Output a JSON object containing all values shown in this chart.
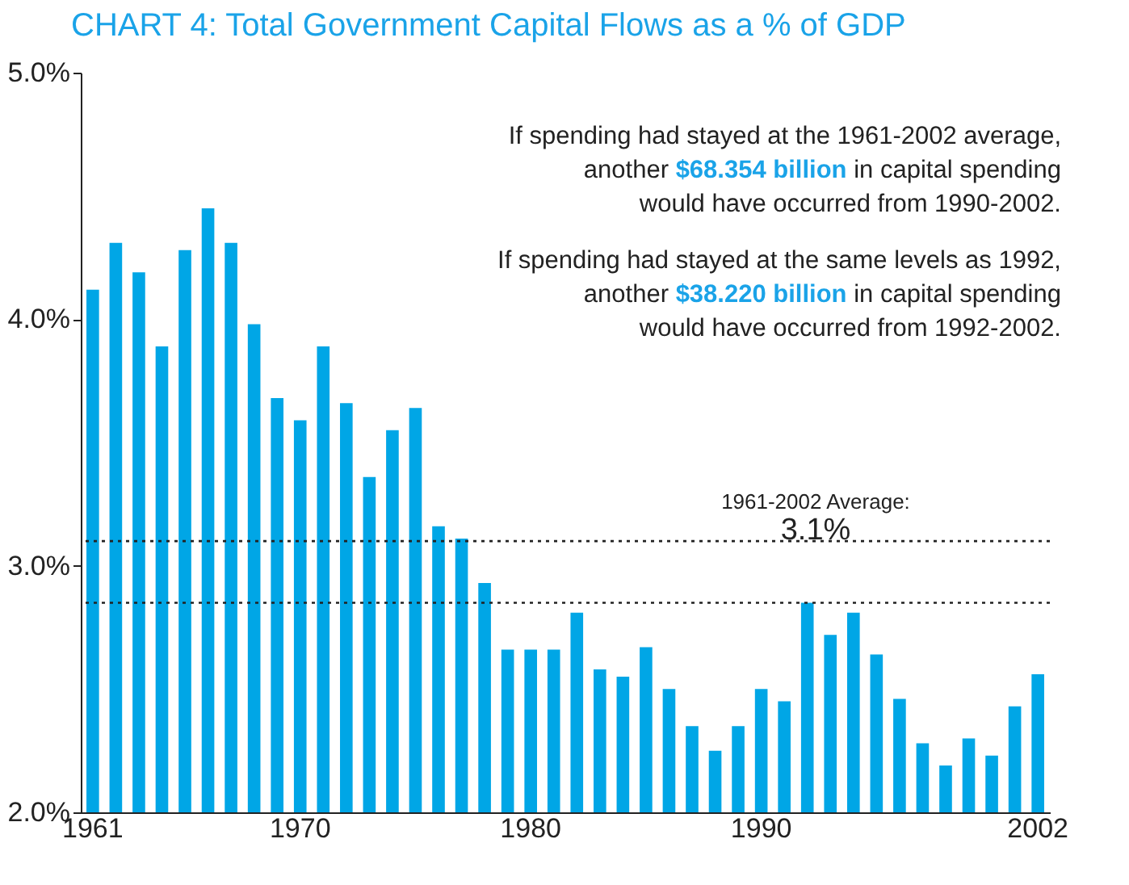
{
  "chart_data": {
    "type": "bar",
    "title": "CHART 4:  Total Government Capital Flows as a % of GDP",
    "categories": [
      "1961",
      null,
      null,
      null,
      null,
      null,
      null,
      null,
      null,
      "1970",
      null,
      null,
      null,
      null,
      null,
      null,
      null,
      null,
      null,
      "1980",
      null,
      null,
      null,
      null,
      null,
      null,
      null,
      null,
      null,
      "1990",
      null,
      null,
      null,
      null,
      null,
      null,
      null,
      null,
      null,
      null,
      null,
      "2002"
    ],
    "values": [
      4.12,
      4.31,
      4.19,
      3.89,
      4.28,
      4.45,
      4.31,
      3.98,
      3.68,
      3.59,
      3.89,
      3.66,
      3.36,
      3.55,
      3.64,
      3.16,
      3.11,
      2.93,
      2.66,
      2.66,
      2.66,
      2.81,
      2.58,
      2.55,
      2.67,
      2.5,
      2.35,
      2.25,
      2.35,
      2.5,
      2.45,
      2.85,
      2.72,
      2.81,
      2.64,
      2.46,
      2.28,
      2.19,
      2.3,
      2.23,
      2.43,
      2.56
    ],
    "color": "#00a6e6",
    "ylim": [
      2,
      5
    ],
    "yticks": [
      {
        "value": 2,
        "label": "2.0%"
      },
      {
        "value": 3,
        "label": "3.0%"
      },
      {
        "value": 4,
        "label": "4.0%"
      },
      {
        "value": 5,
        "label": "5.0%"
      }
    ],
    "ref_lines": [
      {
        "axis": "y",
        "value": 3.1,
        "label": "1961-2002 Average:",
        "line_style": "dotted",
        "color": "#222222"
      },
      {
        "axis": "y",
        "value": 2.85,
        "line_style": "dotted",
        "color": "#222222"
      }
    ],
    "annotations": [
      {
        "text": "3.1%",
        "y": 3.1
      },
      "If spending had stayed at the 1961-2002 average,",
      "another $68.354 billion in capital spending",
      "would have occurred from 1990-2002.",
      "If spending had stayed at the same levels as 1992,",
      "another $38.220 billion in capital spending",
      "would have occurred from 1992-2002."
    ]
  }
}
